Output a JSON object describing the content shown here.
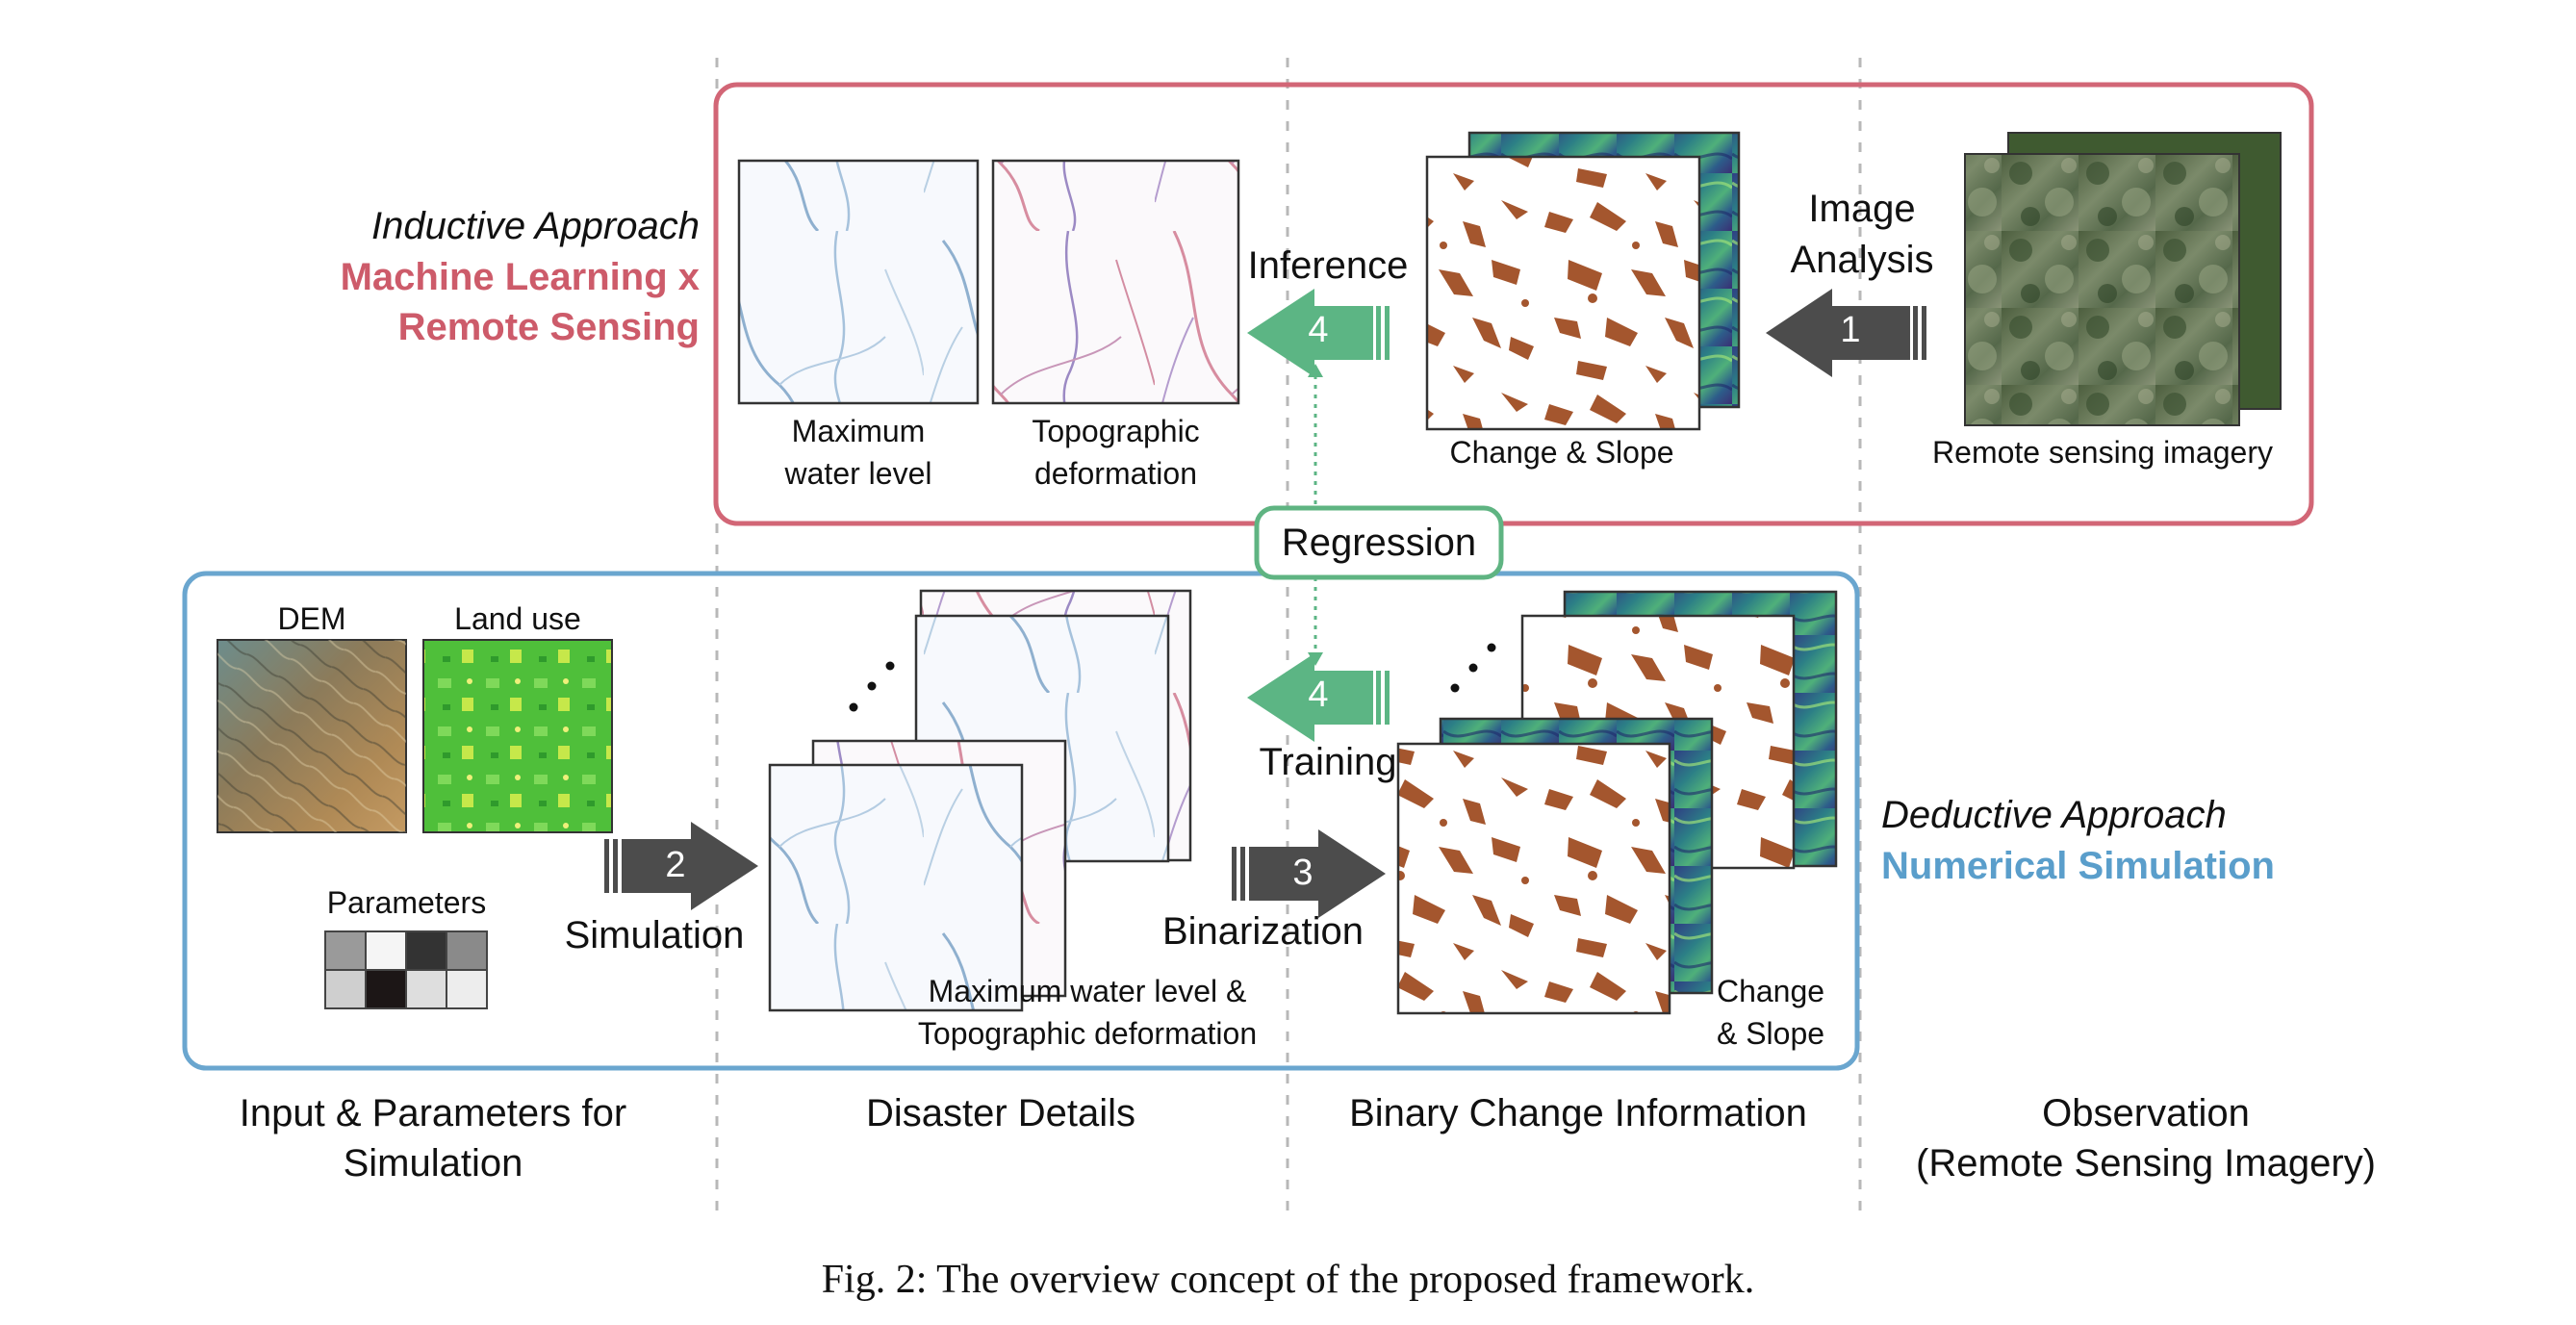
{
  "inductive": {
    "title": "Inductive Approach",
    "subtitle_line1": "Machine Learning x",
    "subtitle_line2": "Remote Sensing"
  },
  "deductive": {
    "title": "Deductive Approach",
    "subtitle": "Numerical Simulation"
  },
  "top_row": {
    "max_water_line1": "Maximum",
    "max_water_line2": "water level",
    "topo_line1": "Topographic",
    "topo_line2": "deformation",
    "change_slope": "Change & Slope",
    "remote_imagery": "Remote sensing imagery",
    "image_analysis_line1": "Image",
    "image_analysis_line2": "Analysis",
    "inference": "Inference"
  },
  "bottom_row": {
    "dem": "DEM",
    "land_use": "Land use",
    "parameters": "Parameters",
    "simulation": "Simulation",
    "binarization": "Binarization",
    "training": "Training",
    "disaster_line1": "Maximum water level &",
    "disaster_line2": "Topographic deformation",
    "change_line1": "Change",
    "change_line2": "& Slope"
  },
  "regression": "Regression",
  "arrows": {
    "a1": "1",
    "a2": "2",
    "a3": "3",
    "a4_top": "4",
    "a4_bottom": "4"
  },
  "columns": {
    "col1_line1": "Input & Parameters for",
    "col1_line2": "Simulation",
    "col2": "Disaster Details",
    "col3": "Binary Change Information",
    "col4_line1": "Observation",
    "col4_line2": "(Remote Sensing Imagery)"
  },
  "caption": "Fig. 2: The overview concept of the proposed framework.",
  "colors": {
    "inductive_box": "#d26676",
    "deductive_box": "#6aa6cf",
    "regression_box": "#5fb482",
    "green_arrow": "#5cb584",
    "dark_arrow": "#4c4c4c",
    "damage_brown": "#a4562e"
  }
}
